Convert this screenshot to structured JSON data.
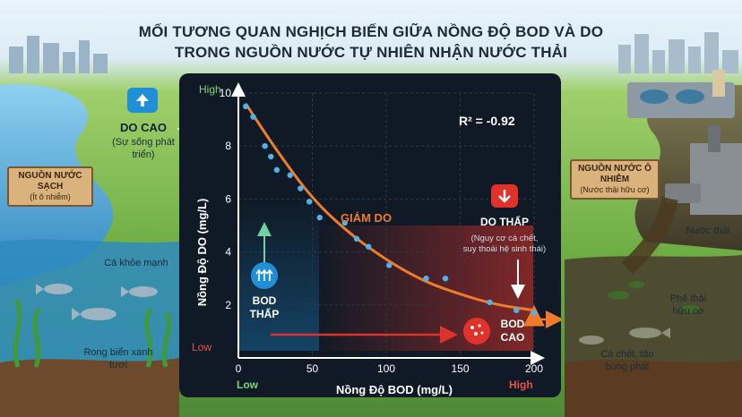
{
  "title_line1": "MỐI TƯƠNG QUAN NGHỊCH BIẾN GIỮA NỒNG ĐỘ BOD VÀ DO",
  "title_line2": "TRONG NGUỒN NƯỚC TỰ NHIÊN NHẬN NƯỚC THẢI",
  "left_panel": {
    "do_high_title": "DO CAO",
    "do_high_sub": "(Sự sống phát triển)",
    "sign_title": "NGUỒN NƯỚC SẠCH",
    "sign_sub": "(Ít ô nhiễm)",
    "fish_label": "Cá khỏe mạnh",
    "seaweed_label": "Rong biển xanh tươi"
  },
  "right_panel": {
    "sign_title": "NGUỒN NƯỚC Ô NHIỄM",
    "sign_sub": "(Nước thải hữu cơ)",
    "wastewater_label": "Nước thải",
    "waste_label": "Phế thải hữu cơ",
    "dead_fish_label": "Cá chết, tảo bùng phát"
  },
  "colors": {
    "panel_bg": "#0f1a26",
    "trend": "#f07c2a",
    "points": "#4fb3ea",
    "accent_red": "#e0322a",
    "accent_blue": "#1f8fd8",
    "low_green": "#7fd37a",
    "low_red": "#e8504a"
  },
  "chart_data": {
    "type": "scatter",
    "xlabel": "Nồng Độ BOD (mg/L)",
    "ylabel": "Nồng Độ DO (mg/L)",
    "xlim": [
      0,
      200
    ],
    "ylim": [
      0,
      10
    ],
    "xticks": [
      0,
      50,
      100,
      150,
      200
    ],
    "yticks": [
      2,
      4,
      6,
      8,
      10
    ],
    "x_low_label": "Low",
    "x_high_label": "High",
    "y_high_label": "High",
    "y_low_label": "Low",
    "r_squared_text": "R² = -0.92",
    "trend_label": "GIẢM DO",
    "grid": true,
    "points": [
      {
        "x": 5,
        "y": 9.5
      },
      {
        "x": 10,
        "y": 9.1
      },
      {
        "x": 18,
        "y": 8.0
      },
      {
        "x": 22,
        "y": 7.6
      },
      {
        "x": 26,
        "y": 7.1
      },
      {
        "x": 35,
        "y": 6.9
      },
      {
        "x": 42,
        "y": 6.4
      },
      {
        "x": 48,
        "y": 5.9
      },
      {
        "x": 55,
        "y": 5.3
      },
      {
        "x": 72,
        "y": 5.1
      },
      {
        "x": 80,
        "y": 4.5
      },
      {
        "x": 88,
        "y": 4.2
      },
      {
        "x": 102,
        "y": 3.5
      },
      {
        "x": 127,
        "y": 3.0
      },
      {
        "x": 140,
        "y": 3.0
      },
      {
        "x": 170,
        "y": 2.1
      },
      {
        "x": 188,
        "y": 1.8
      },
      {
        "x": 200,
        "y": 1.7
      }
    ],
    "trend": [
      {
        "x": 5,
        "y": 9.6
      },
      {
        "x": 25,
        "y": 7.9
      },
      {
        "x": 50,
        "y": 6.0
      },
      {
        "x": 75,
        "y": 4.7
      },
      {
        "x": 100,
        "y": 3.7
      },
      {
        "x": 125,
        "y": 2.9
      },
      {
        "x": 150,
        "y": 2.4
      },
      {
        "x": 175,
        "y": 2.0
      },
      {
        "x": 200,
        "y": 1.8
      }
    ],
    "annotations": {
      "do_low_title": "DO THẤP",
      "do_low_sub1": "(Nguy cơ cá chết,",
      "do_low_sub2": "suy thoái hệ sinh thái)",
      "bod_low_line1": "BOD",
      "bod_low_line2": "THẤP",
      "bod_high_line1": "BOD",
      "bod_high_line2": "CAO"
    }
  }
}
